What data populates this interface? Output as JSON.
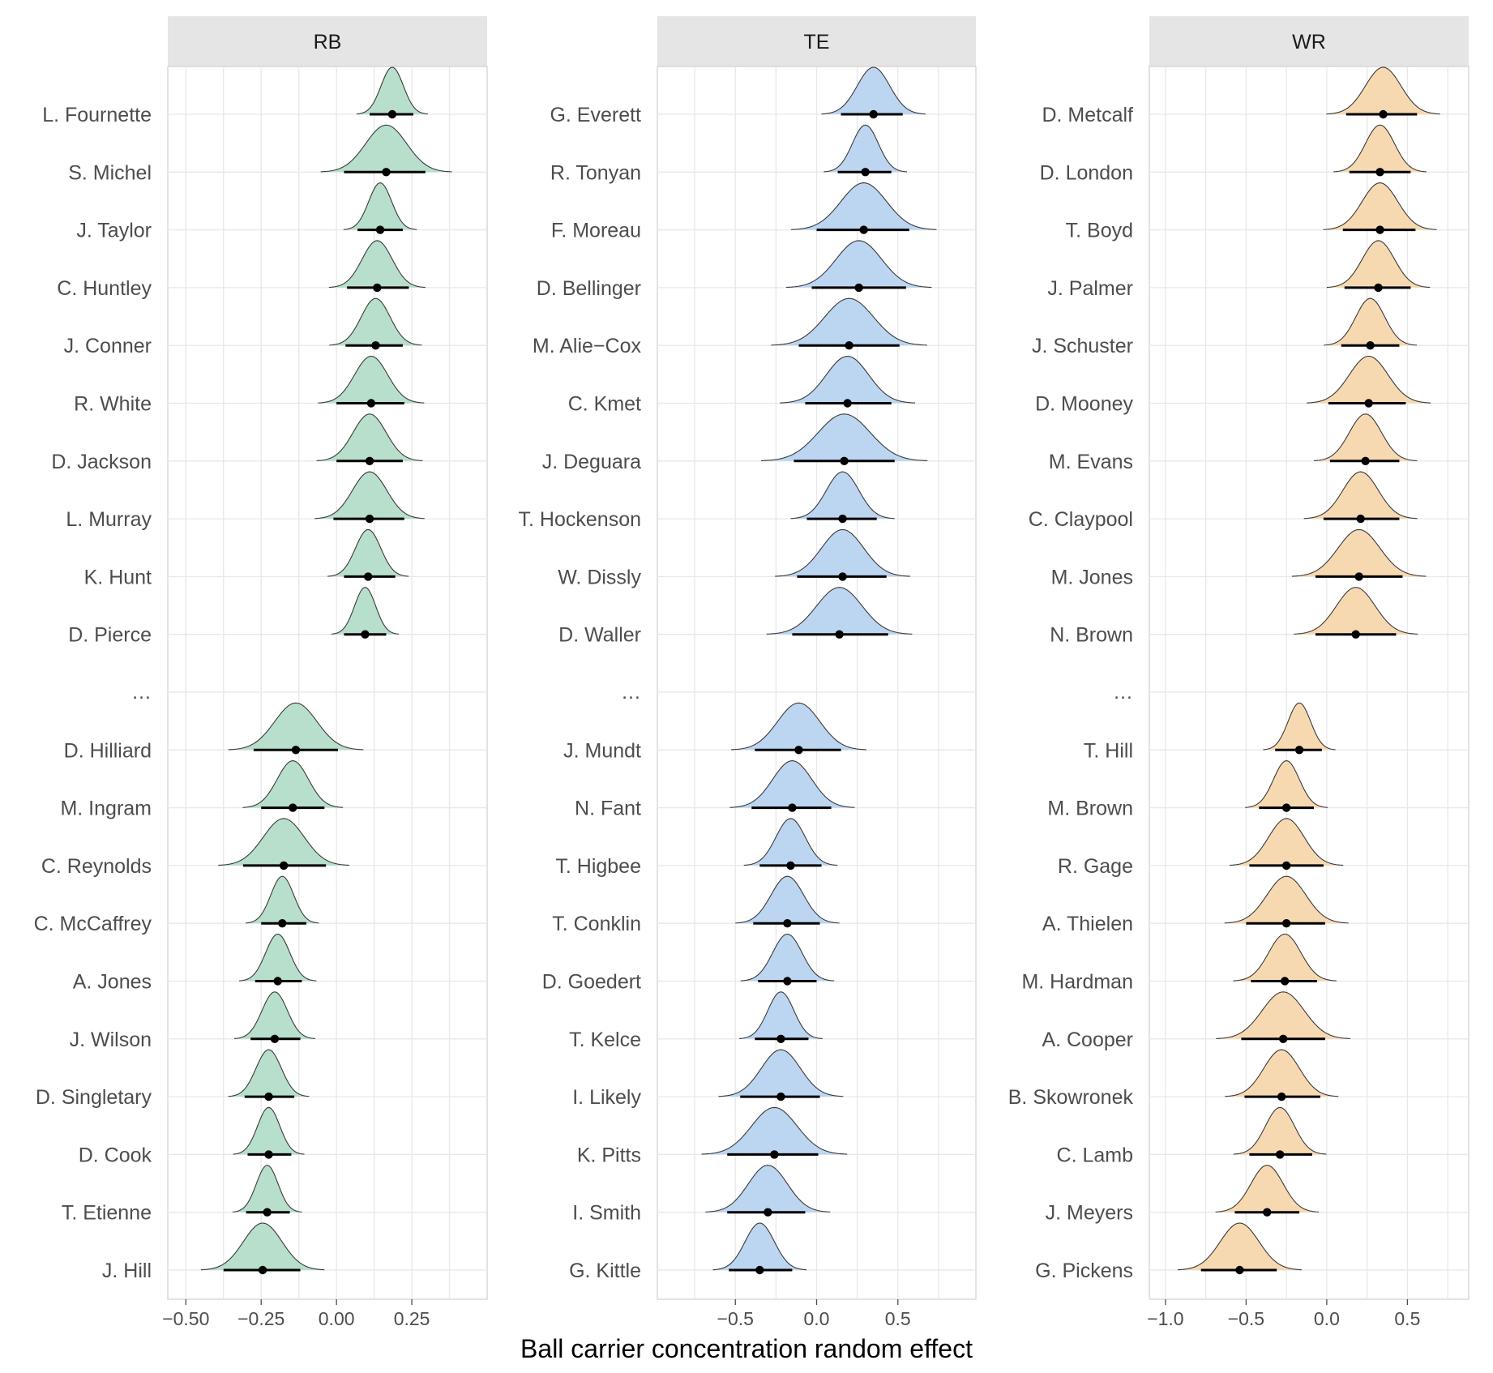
{
  "chart_data": {
    "type": "ridgeline",
    "xlabel": "Ball carrier concentration random effect",
    "separator_label": "…",
    "colors": {
      "RB": "#b7dfcb",
      "TE": "#bcd5f0",
      "WR": "#f7d9b1",
      "outline": "#3a3a3a",
      "point": "#000000",
      "grid": "#e8e8e8",
      "strip_bg": "#e5e5e5",
      "panel_border": "#d0d0d0"
    },
    "panels": [
      {
        "name": "RB",
        "xlim": [
          -0.56,
          0.5
        ],
        "xticks": [
          -0.5,
          -0.25,
          0.0,
          0.25
        ],
        "xtick_labels": [
          "−0.50",
          "−0.25",
          "0.00",
          "0.25"
        ],
        "top": [
          {
            "player": "L. Fournette",
            "mean": 0.185,
            "lo": 0.11,
            "hi": 0.255,
            "sd": 0.037
          },
          {
            "player": "S. Michel",
            "mean": 0.165,
            "lo": 0.025,
            "hi": 0.295,
            "sd": 0.068
          },
          {
            "player": "J. Taylor",
            "mean": 0.145,
            "lo": 0.07,
            "hi": 0.22,
            "sd": 0.038
          },
          {
            "player": "C. Huntley",
            "mean": 0.135,
            "lo": 0.035,
            "hi": 0.24,
            "sd": 0.05
          },
          {
            "player": "J. Conner",
            "mean": 0.13,
            "lo": 0.03,
            "hi": 0.22,
            "sd": 0.048
          },
          {
            "player": "R. White",
            "mean": 0.115,
            "lo": 0.0,
            "hi": 0.225,
            "sd": 0.055
          },
          {
            "player": "D. Jackson",
            "mean": 0.11,
            "lo": 0.0,
            "hi": 0.22,
            "sd": 0.055
          },
          {
            "player": "L. Murray",
            "mean": 0.11,
            "lo": -0.01,
            "hi": 0.225,
            "sd": 0.057
          },
          {
            "player": "K. Hunt",
            "mean": 0.105,
            "lo": 0.025,
            "hi": 0.195,
            "sd": 0.042
          },
          {
            "player": "D. Pierce",
            "mean": 0.095,
            "lo": 0.025,
            "hi": 0.165,
            "sd": 0.035
          }
        ],
        "bottom": [
          {
            "player": "D. Hilliard",
            "mean": -0.135,
            "lo": -0.275,
            "hi": 0.005,
            "sd": 0.07
          },
          {
            "player": "M. Ingram",
            "mean": -0.145,
            "lo": -0.25,
            "hi": -0.04,
            "sd": 0.052
          },
          {
            "player": "C. Reynolds",
            "mean": -0.175,
            "lo": -0.31,
            "hi": -0.035,
            "sd": 0.068
          },
          {
            "player": "C. McCaffrey",
            "mean": -0.18,
            "lo": -0.25,
            "hi": -0.1,
            "sd": 0.038
          },
          {
            "player": "A. Jones",
            "mean": -0.195,
            "lo": -0.27,
            "hi": -0.115,
            "sd": 0.04
          },
          {
            "player": "J. Wilson",
            "mean": -0.205,
            "lo": -0.285,
            "hi": -0.12,
            "sd": 0.042
          },
          {
            "player": "D. Singletary",
            "mean": -0.225,
            "lo": -0.305,
            "hi": -0.14,
            "sd": 0.042
          },
          {
            "player": "D. Cook",
            "mean": -0.225,
            "lo": -0.295,
            "hi": -0.15,
            "sd": 0.037
          },
          {
            "player": "T. Etienne",
            "mean": -0.23,
            "lo": -0.3,
            "hi": -0.155,
            "sd": 0.036
          },
          {
            "player": "J. Hill",
            "mean": -0.245,
            "lo": -0.375,
            "hi": -0.12,
            "sd": 0.064
          }
        ]
      },
      {
        "name": "TE",
        "xlim": [
          -0.98,
          0.98
        ],
        "xticks": [
          -0.5,
          0.0,
          0.5
        ],
        "xtick_labels": [
          "−0.5",
          "0.0",
          "0.5"
        ],
        "top": [
          {
            "player": "G. Everett",
            "mean": 0.35,
            "lo": 0.15,
            "hi": 0.53,
            "sd": 0.1
          },
          {
            "player": "R. Tonyan",
            "mean": 0.3,
            "lo": 0.13,
            "hi": 0.46,
            "sd": 0.08
          },
          {
            "player": "F. Moreau",
            "mean": 0.29,
            "lo": 0.0,
            "hi": 0.57,
            "sd": 0.14
          },
          {
            "player": "D. Bellinger",
            "mean": 0.26,
            "lo": -0.03,
            "hi": 0.55,
            "sd": 0.14
          },
          {
            "player": "M. Alie−Cox",
            "mean": 0.2,
            "lo": -0.11,
            "hi": 0.51,
            "sd": 0.15
          },
          {
            "player": "C. Kmet",
            "mean": 0.19,
            "lo": -0.07,
            "hi": 0.46,
            "sd": 0.13
          },
          {
            "player": "J. Deguara",
            "mean": 0.17,
            "lo": -0.14,
            "hi": 0.48,
            "sd": 0.16
          },
          {
            "player": "T. Hockenson",
            "mean": 0.16,
            "lo": -0.06,
            "hi": 0.37,
            "sd": 0.1
          },
          {
            "player": "W. Dissly",
            "mean": 0.16,
            "lo": -0.12,
            "hi": 0.43,
            "sd": 0.13
          },
          {
            "player": "D. Waller",
            "mean": 0.14,
            "lo": -0.15,
            "hi": 0.44,
            "sd": 0.14
          }
        ],
        "bottom": [
          {
            "player": "J. Mundt",
            "mean": -0.11,
            "lo": -0.38,
            "hi": 0.15,
            "sd": 0.13
          },
          {
            "player": "N. Fant",
            "mean": -0.15,
            "lo": -0.4,
            "hi": 0.09,
            "sd": 0.12
          },
          {
            "player": "T. Higbee",
            "mean": -0.16,
            "lo": -0.35,
            "hi": 0.03,
            "sd": 0.09
          },
          {
            "player": "T. Conklin",
            "mean": -0.18,
            "lo": -0.39,
            "hi": 0.02,
            "sd": 0.1
          },
          {
            "player": "D. Goedert",
            "mean": -0.18,
            "lo": -0.36,
            "hi": 0.0,
            "sd": 0.09
          },
          {
            "player": "T. Kelce",
            "mean": -0.22,
            "lo": -0.38,
            "hi": -0.05,
            "sd": 0.08
          },
          {
            "player": "I. Likely",
            "mean": -0.22,
            "lo": -0.47,
            "hi": 0.02,
            "sd": 0.12
          },
          {
            "player": "K. Pitts",
            "mean": -0.26,
            "lo": -0.55,
            "hi": 0.01,
            "sd": 0.14
          },
          {
            "player": "I. Smith",
            "mean": -0.3,
            "lo": -0.55,
            "hi": -0.07,
            "sd": 0.12
          },
          {
            "player": "G. Kittle",
            "mean": -0.35,
            "lo": -0.54,
            "hi": -0.15,
            "sd": 0.09
          }
        ]
      },
      {
        "name": "WR",
        "xlim": [
          -1.1,
          0.88
        ],
        "xticks": [
          -1.0,
          -0.5,
          0.0,
          0.5
        ],
        "xtick_labels": [
          "−1.0",
          "−0.5",
          "0.0",
          "0.5"
        ],
        "top": [
          {
            "player": "D. Metcalf",
            "mean": 0.35,
            "lo": 0.12,
            "hi": 0.56,
            "sd": 0.11
          },
          {
            "player": "D. London",
            "mean": 0.33,
            "lo": 0.14,
            "hi": 0.52,
            "sd": 0.09
          },
          {
            "player": "T. Boyd",
            "mean": 0.33,
            "lo": 0.1,
            "hi": 0.55,
            "sd": 0.11
          },
          {
            "player": "J. Palmer",
            "mean": 0.32,
            "lo": 0.11,
            "hi": 0.52,
            "sd": 0.1
          },
          {
            "player": "J. Schuster",
            "mean": 0.27,
            "lo": 0.09,
            "hi": 0.45,
            "sd": 0.09
          },
          {
            "player": "D. Mooney",
            "mean": 0.26,
            "lo": 0.01,
            "hi": 0.49,
            "sd": 0.12
          },
          {
            "player": "M. Evans",
            "mean": 0.24,
            "lo": 0.02,
            "hi": 0.45,
            "sd": 0.1
          },
          {
            "player": "C. Claypool",
            "mean": 0.21,
            "lo": -0.02,
            "hi": 0.45,
            "sd": 0.11
          },
          {
            "player": "M. Jones",
            "mean": 0.2,
            "lo": -0.07,
            "hi": 0.47,
            "sd": 0.13
          },
          {
            "player": "N. Brown",
            "mean": 0.18,
            "lo": -0.07,
            "hi": 0.43,
            "sd": 0.12
          }
        ],
        "bottom": [
          {
            "player": "T. Hill",
            "mean": -0.17,
            "lo": -0.32,
            "hi": -0.03,
            "sd": 0.07
          },
          {
            "player": "M. Brown",
            "mean": -0.25,
            "lo": -0.42,
            "hi": -0.08,
            "sd": 0.08
          },
          {
            "player": "R. Gage",
            "mean": -0.25,
            "lo": -0.48,
            "hi": -0.02,
            "sd": 0.11
          },
          {
            "player": "A. Thielen",
            "mean": -0.25,
            "lo": -0.5,
            "hi": -0.01,
            "sd": 0.12
          },
          {
            "player": "M. Hardman",
            "mean": -0.26,
            "lo": -0.47,
            "hi": -0.06,
            "sd": 0.1
          },
          {
            "player": "A. Cooper",
            "mean": -0.27,
            "lo": -0.53,
            "hi": -0.01,
            "sd": 0.13
          },
          {
            "player": "B. Skowronek",
            "mean": -0.28,
            "lo": -0.51,
            "hi": -0.04,
            "sd": 0.11
          },
          {
            "player": "C. Lamb",
            "mean": -0.29,
            "lo": -0.48,
            "hi": -0.09,
            "sd": 0.09
          },
          {
            "player": "J. Meyers",
            "mean": -0.37,
            "lo": -0.57,
            "hi": -0.17,
            "sd": 0.1
          },
          {
            "player": "G. Pickens",
            "mean": -0.54,
            "lo": -0.78,
            "hi": -0.31,
            "sd": 0.12
          }
        ]
      }
    ]
  }
}
